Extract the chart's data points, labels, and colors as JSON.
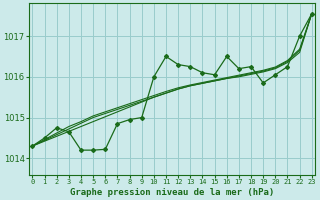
{
  "title": "Graphe pression niveau de la mer (hPa)",
  "hours": [
    0,
    1,
    2,
    3,
    4,
    5,
    6,
    7,
    8,
    9,
    10,
    11,
    12,
    13,
    14,
    15,
    16,
    17,
    18,
    19,
    20,
    21,
    22,
    23
  ],
  "ylim": [
    1013.6,
    1017.8
  ],
  "yticks": [
    1014,
    1015,
    1016,
    1017
  ],
  "bg_color": "#cceaea",
  "grid_color": "#99cccc",
  "line_color": "#1a6b1a",
  "series_main": [
    1014.3,
    1014.5,
    1014.75,
    1014.65,
    1014.2,
    1014.2,
    1014.22,
    1014.85,
    1014.95,
    1015.0,
    1016.0,
    1016.5,
    1016.3,
    1016.25,
    1016.1,
    1016.05,
    1016.5,
    1016.2,
    1016.25,
    1015.85,
    1016.05,
    1016.25,
    1017.0,
    1017.55
  ],
  "series_linear1": [
    1014.3,
    1014.42,
    1014.54,
    1014.66,
    1014.78,
    1014.9,
    1015.02,
    1015.14,
    1015.26,
    1015.38,
    1015.5,
    1015.6,
    1015.7,
    1015.78,
    1015.84,
    1015.9,
    1015.96,
    1016.0,
    1016.06,
    1016.12,
    1016.2,
    1016.35,
    1016.6,
    1017.55
  ],
  "series_linear2": [
    1014.3,
    1014.44,
    1014.58,
    1014.72,
    1014.86,
    1015.0,
    1015.1,
    1015.2,
    1015.3,
    1015.4,
    1015.5,
    1015.6,
    1015.7,
    1015.78,
    1015.84,
    1015.9,
    1015.96,
    1016.02,
    1016.08,
    1016.14,
    1016.22,
    1016.38,
    1016.65,
    1017.55
  ],
  "series_linear3": [
    1014.3,
    1014.46,
    1014.62,
    1014.78,
    1014.9,
    1015.04,
    1015.14,
    1015.24,
    1015.34,
    1015.44,
    1015.54,
    1015.64,
    1015.73,
    1015.8,
    1015.86,
    1015.92,
    1015.98,
    1016.04,
    1016.1,
    1016.16,
    1016.24,
    1016.4,
    1016.68,
    1017.55
  ]
}
